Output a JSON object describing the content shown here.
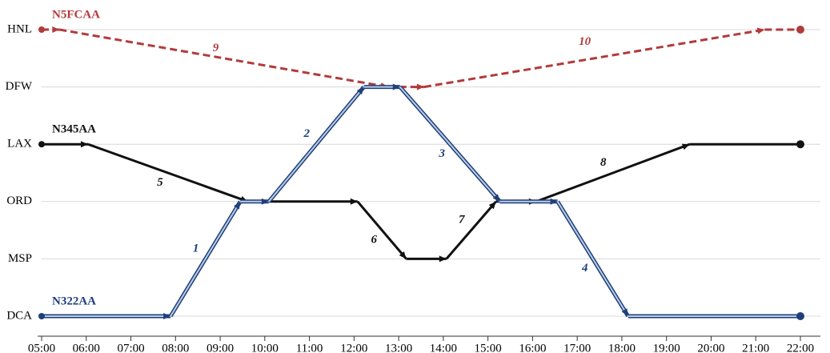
{
  "chart_data": {
    "type": "time-space",
    "yticks": [
      "HNL",
      "DFW",
      "LAX",
      "ORD",
      "MSP",
      "DCA"
    ],
    "xlim": [
      5,
      22
    ],
    "xticks": [
      {
        "value": 5,
        "label": "05:00"
      },
      {
        "value": 6,
        "label": "06:00"
      },
      {
        "value": 7,
        "label": "07:00"
      },
      {
        "value": 8,
        "label": "08:00"
      },
      {
        "value": 9,
        "label": "09:00"
      },
      {
        "value": 10,
        "label": "10:00"
      },
      {
        "value": 11,
        "label": "11:00"
      },
      {
        "value": 12,
        "label": "12:00"
      },
      {
        "value": 13,
        "label": "13:00"
      },
      {
        "value": 14,
        "label": "14:00"
      },
      {
        "value": 15,
        "label": "15:00"
      },
      {
        "value": 16,
        "label": "16:00"
      },
      {
        "value": 17,
        "label": "17:00"
      },
      {
        "value": 18,
        "label": "18:00"
      },
      {
        "value": 19,
        "label": "19:00"
      },
      {
        "value": 20,
        "label": "20:00"
      },
      {
        "value": 21,
        "label": "21:00"
      },
      {
        "value": 22,
        "label": "22:00"
      }
    ],
    "grid": true,
    "series": [
      {
        "name": "N5FCAA",
        "color": "#b23b3b",
        "style": "dashed",
        "flights": [
          {
            "label": "9",
            "from": "HNL",
            "to": "DFW",
            "dep": 5.4,
            "arr": 12.76
          },
          {
            "label": "10",
            "from": "DFW",
            "to": "HNL",
            "dep": 13.57,
            "arr": 21.2
          }
        ]
      },
      {
        "name": "N345AA",
        "color": "#111111",
        "style": "solid",
        "flights": [
          {
            "label": "5",
            "from": "LAX",
            "to": "ORD",
            "dep": 6.04,
            "arr": 9.62
          },
          {
            "label": "6",
            "from": "ORD",
            "to": "MSP",
            "dep": 12.08,
            "arr": 13.17
          },
          {
            "label": "7",
            "from": "MSP",
            "to": "ORD",
            "dep": 14.07,
            "arr": 15.18
          },
          {
            "label": "8",
            "from": "ORD",
            "to": "LAX",
            "dep": 16.08,
            "arr": 19.52
          }
        ]
      },
      {
        "name": "N322AA",
        "color": "#1f3f7a",
        "style": "double",
        "flights": [
          {
            "label": "1",
            "from": "DCA",
            "to": "ORD",
            "dep": 7.89,
            "arr": 9.45
          },
          {
            "label": "2",
            "from": "ORD",
            "to": "DFW",
            "dep": 10.09,
            "arr": 12.22
          },
          {
            "label": "3",
            "from": "DFW",
            "to": "ORD",
            "dep": 13.03,
            "arr": 15.27
          },
          {
            "label": "4",
            "from": "ORD",
            "to": "DCA",
            "dep": 16.56,
            "arr": 18.14
          }
        ]
      }
    ]
  }
}
